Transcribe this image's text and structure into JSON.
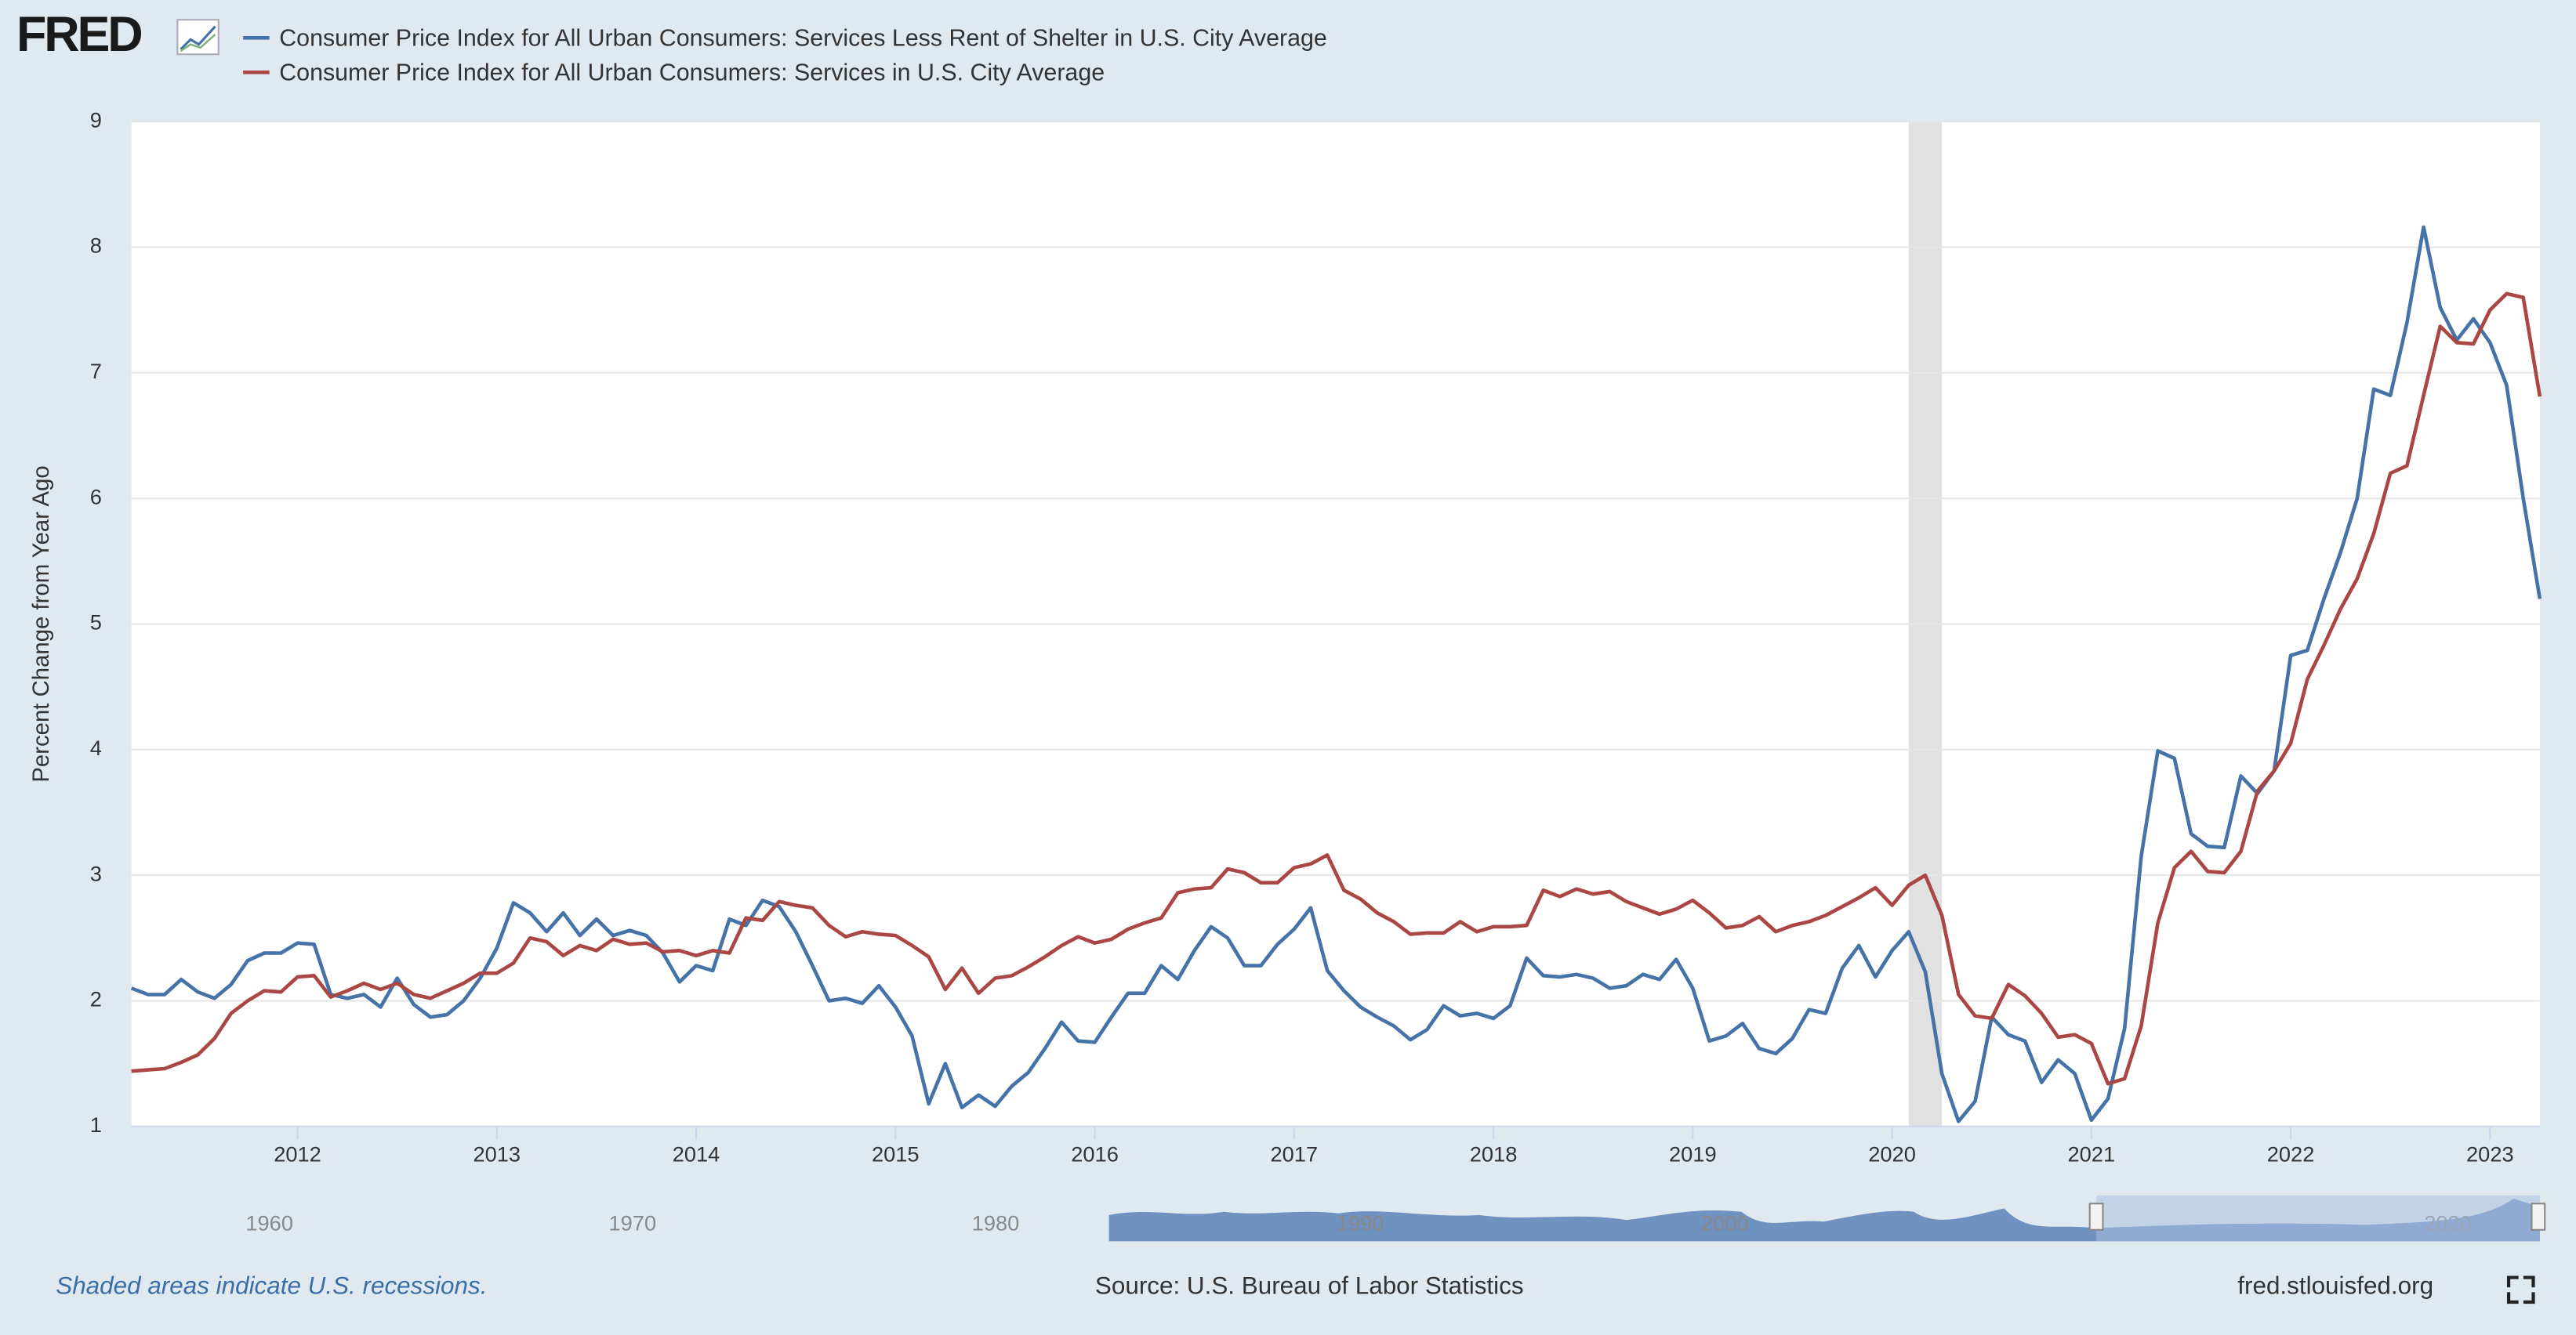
{
  "chart_data": {
    "type": "line",
    "logo": "FRED",
    "y_label": "Percent Change from Year Ago",
    "x": [
      "2011-03",
      "2011-04",
      "2011-05",
      "2011-06",
      "2011-07",
      "2011-08",
      "2011-09",
      "2011-10",
      "2011-11",
      "2011-12",
      "2012-01",
      "2012-02",
      "2012-03",
      "2012-04",
      "2012-05",
      "2012-06",
      "2012-07",
      "2012-08",
      "2012-09",
      "2012-10",
      "2012-11",
      "2012-12",
      "2013-01",
      "2013-02",
      "2013-03",
      "2013-04",
      "2013-05",
      "2013-06",
      "2013-07",
      "2013-08",
      "2013-09",
      "2013-10",
      "2013-11",
      "2013-12",
      "2014-01",
      "2014-02",
      "2014-03",
      "2014-04",
      "2014-05",
      "2014-06",
      "2014-07",
      "2014-08",
      "2014-09",
      "2014-10",
      "2014-11",
      "2014-12",
      "2015-01",
      "2015-02",
      "2015-03",
      "2015-04",
      "2015-05",
      "2015-06",
      "2015-07",
      "2015-08",
      "2015-09",
      "2015-10",
      "2015-11",
      "2015-12",
      "2016-01",
      "2016-02",
      "2016-03",
      "2016-04",
      "2016-05",
      "2016-06",
      "2016-07",
      "2016-08",
      "2016-09",
      "2016-10",
      "2016-11",
      "2016-12",
      "2017-01",
      "2017-02",
      "2017-03",
      "2017-04",
      "2017-05",
      "2017-06",
      "2017-07",
      "2017-08",
      "2017-09",
      "2017-10",
      "2017-11",
      "2017-12",
      "2018-01",
      "2018-02",
      "2018-03",
      "2018-04",
      "2018-05",
      "2018-06",
      "2018-07",
      "2018-08",
      "2018-09",
      "2018-10",
      "2018-11",
      "2018-12",
      "2019-01",
      "2019-02",
      "2019-03",
      "2019-04",
      "2019-05",
      "2019-06",
      "2019-07",
      "2019-08",
      "2019-09",
      "2019-10",
      "2019-11",
      "2019-12",
      "2020-01",
      "2020-02",
      "2020-03",
      "2020-04",
      "2020-05",
      "2020-06",
      "2020-07",
      "2020-08",
      "2020-09",
      "2020-10",
      "2020-11",
      "2020-12",
      "2021-01",
      "2021-02",
      "2021-03",
      "2021-04",
      "2021-05",
      "2021-06",
      "2021-07",
      "2021-08",
      "2021-09",
      "2021-10",
      "2021-11",
      "2021-12",
      "2022-01",
      "2022-02",
      "2022-03",
      "2022-04",
      "2022-05",
      "2022-06",
      "2022-07",
      "2022-08",
      "2022-09",
      "2022-10",
      "2022-11",
      "2022-12",
      "2023-01",
      "2023-02",
      "2023-03",
      "2023-04"
    ],
    "series": [
      {
        "name": "Consumer Price Index for All Urban Consumers: Services Less Rent of Shelter in U.S. City Average",
        "color": "#4572a7",
        "values": [
          2.1,
          2.05,
          2.05,
          2.17,
          2.07,
          2.02,
          2.13,
          2.32,
          2.38,
          2.38,
          2.46,
          2.45,
          2.05,
          2.02,
          2.05,
          1.95,
          2.18,
          1.97,
          1.87,
          1.89,
          2.0,
          2.18,
          2.42,
          2.78,
          2.7,
          2.55,
          2.7,
          2.52,
          2.65,
          2.52,
          2.56,
          2.52,
          2.38,
          2.15,
          2.28,
          2.24,
          2.65,
          2.6,
          2.8,
          2.75,
          2.55,
          2.28,
          2.0,
          2.02,
          1.98,
          2.12,
          1.95,
          1.72,
          1.18,
          1.5,
          1.15,
          1.25,
          1.16,
          1.32,
          1.43,
          1.62,
          1.83,
          1.68,
          1.67,
          1.87,
          2.06,
          2.06,
          2.28,
          2.17,
          2.4,
          2.59,
          2.5,
          2.28,
          2.28,
          2.45,
          2.57,
          2.74,
          2.24,
          2.08,
          1.95,
          1.87,
          1.8,
          1.69,
          1.77,
          1.96,
          1.88,
          1.9,
          1.86,
          1.96,
          2.34,
          2.2,
          2.19,
          2.21,
          2.18,
          2.1,
          2.12,
          2.21,
          2.17,
          2.33,
          2.1,
          1.68,
          1.72,
          1.82,
          1.62,
          1.58,
          1.7,
          1.93,
          1.9,
          2.26,
          2.44,
          2.19,
          2.4,
          2.55,
          2.23,
          1.42,
          1.04,
          1.2,
          1.87,
          1.73,
          1.68,
          1.35,
          1.53,
          1.42,
          1.05,
          1.22,
          1.78,
          3.15,
          3.99,
          3.93,
          3.33,
          3.23,
          3.22,
          3.79,
          3.65,
          3.83,
          4.75,
          4.79,
          5.2,
          5.57,
          6.0,
          6.87,
          6.82,
          7.4,
          8.16,
          7.52,
          7.26,
          7.43,
          7.24,
          6.9,
          6.0,
          5.2
        ]
      },
      {
        "name": "Consumer Price Index for All Urban Consumers: Services in U.S. City Average",
        "color": "#aa4643",
        "values": [
          1.44,
          1.45,
          1.46,
          1.51,
          1.57,
          1.7,
          1.9,
          2.0,
          2.08,
          2.07,
          2.19,
          2.2,
          2.03,
          2.08,
          2.14,
          2.09,
          2.14,
          2.05,
          2.02,
          2.08,
          2.14,
          2.22,
          2.22,
          2.3,
          2.5,
          2.47,
          2.36,
          2.44,
          2.4,
          2.49,
          2.45,
          2.46,
          2.39,
          2.4,
          2.36,
          2.4,
          2.38,
          2.66,
          2.64,
          2.79,
          2.76,
          2.74,
          2.6,
          2.51,
          2.55,
          2.53,
          2.52,
          2.44,
          2.35,
          2.09,
          2.26,
          2.06,
          2.18,
          2.2,
          2.27,
          2.35,
          2.44,
          2.51,
          2.46,
          2.49,
          2.57,
          2.62,
          2.66,
          2.86,
          2.89,
          2.9,
          3.05,
          3.02,
          2.94,
          2.94,
          3.06,
          3.09,
          3.16,
          2.88,
          2.81,
          2.7,
          2.63,
          2.53,
          2.54,
          2.54,
          2.63,
          2.55,
          2.59,
          2.59,
          2.6,
          2.88,
          2.83,
          2.89,
          2.85,
          2.87,
          2.79,
          2.74,
          2.69,
          2.73,
          2.8,
          2.7,
          2.58,
          2.6,
          2.67,
          2.55,
          2.6,
          2.63,
          2.68,
          2.75,
          2.82,
          2.9,
          2.76,
          2.92,
          3.0,
          2.68,
          2.05,
          1.88,
          1.86,
          2.13,
          2.04,
          1.9,
          1.71,
          1.73,
          1.66,
          1.34,
          1.38,
          1.8,
          2.62,
          3.06,
          3.19,
          3.03,
          3.02,
          3.19,
          3.67,
          3.83,
          4.05,
          4.56,
          4.83,
          5.12,
          5.36,
          5.72,
          6.2,
          6.26,
          6.82,
          7.37,
          7.24,
          7.23,
          7.5,
          7.63,
          7.6,
          6.81
        ]
      }
    ],
    "xlim": [
      "2011-03",
      "2023-04"
    ],
    "xticks": [
      {
        "value": "2012-01",
        "label": "2012"
      },
      {
        "value": "2013-01",
        "label": "2013"
      },
      {
        "value": "2014-01",
        "label": "2014"
      },
      {
        "value": "2015-01",
        "label": "2015"
      },
      {
        "value": "2016-01",
        "label": "2016"
      },
      {
        "value": "2017-01",
        "label": "2017"
      },
      {
        "value": "2018-01",
        "label": "2018"
      },
      {
        "value": "2019-01",
        "label": "2019"
      },
      {
        "value": "2020-01",
        "label": "2020"
      },
      {
        "value": "2021-01",
        "label": "2021"
      },
      {
        "value": "2022-01",
        "label": "2022"
      },
      {
        "value": "2023-01",
        "label": "2023"
      }
    ],
    "ylim": [
      1,
      9
    ],
    "yticks": [
      1,
      2,
      3,
      4,
      5,
      6,
      7,
      8,
      9
    ],
    "grid": true,
    "recessions": [
      {
        "start": "2020-02",
        "end": "2020-04"
      }
    ],
    "navigator_labels": [
      "1960",
      "1970",
      "1980",
      "1990",
      "2000",
      "2020"
    ],
    "footnote": "Shaded areas indicate U.S. recessions.",
    "source": "Source: U.S. Bureau of Labor Statistics",
    "site": "fred.stlouisfed.org"
  }
}
